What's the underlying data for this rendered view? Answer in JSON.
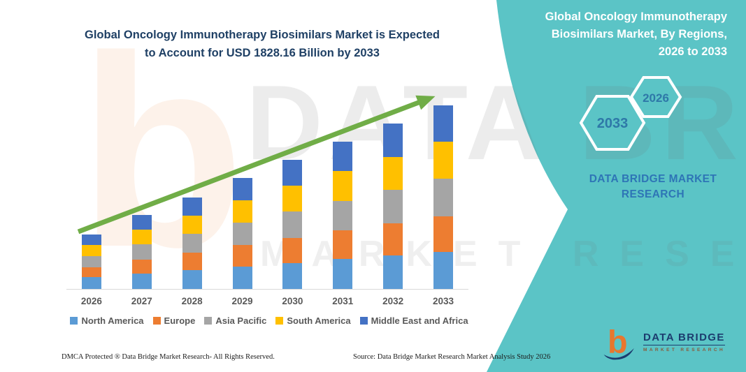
{
  "left_title_lines": [
    "Global Oncology Immunotherapy Biosimilars Market is Expected",
    "to Account for USD 1828.16 Billion by 2033"
  ],
  "right_panel": {
    "title_lines": [
      "Global Oncology Immunotherapy",
      "Biosimilars Market, By Regions,",
      "2026 to 2033"
    ],
    "hex_large_year": "2033",
    "hex_small_year": "2026",
    "caption_lines": [
      "DATA BRIDGE MARKET",
      "RESEARCH"
    ],
    "teal_color": "#5BC4C6",
    "hex_text_color": "#2E78A8"
  },
  "chart_data": {
    "type": "bar",
    "stacked": true,
    "unit": "USD Billion",
    "categories": [
      "2026",
      "2027",
      "2028",
      "2029",
      "2030",
      "2031",
      "2032",
      "2033"
    ],
    "series": [
      {
        "name": "North America",
        "color": "#5B9BD5",
        "values": [
          118,
          150,
          185,
          224,
          261,
          297,
          334,
          368.16
        ]
      },
      {
        "name": "Europe",
        "color": "#ED7D31",
        "values": [
          97,
          143,
          177,
          214,
          250,
          286,
          321,
          355
        ]
      },
      {
        "name": "Asia Pacific",
        "color": "#A5A5A5",
        "values": [
          111,
          149,
          184,
          223,
          259,
          296,
          332,
          375
        ]
      },
      {
        "name": "South America",
        "color": "#FFC000",
        "values": [
          111,
          148,
          183,
          222,
          258,
          294,
          330,
          368
        ]
      },
      {
        "name": "Middle East and Africa",
        "color": "#4472C4",
        "values": [
          104,
          147,
          182,
          222,
          258,
          294,
          331,
          362
        ]
      }
    ],
    "annual_totals_usd_billion": [
      541,
      737,
      911,
      1105,
      1286,
      1467,
      1648,
      1828.16
    ],
    "ylim": [
      0,
      2000
    ],
    "grid": false,
    "legend_position": "bottom",
    "trend_arrow_color": "#70AD47",
    "axis_color": "#D9D9D9"
  },
  "watermark": {
    "glyph": "b",
    "line1": "DATA BRIDGE",
    "line2": "MARKET RESEARCH"
  },
  "logo": {
    "brand": "DATA BRIDGE",
    "sub": "MARKET RESEARCH"
  },
  "footer": {
    "dmca": "DMCA Protected ® Data Bridge Market Research-  All Rights Reserved.",
    "source": "Source: Data Bridge Market Research  Market Analysis Study 2026"
  }
}
